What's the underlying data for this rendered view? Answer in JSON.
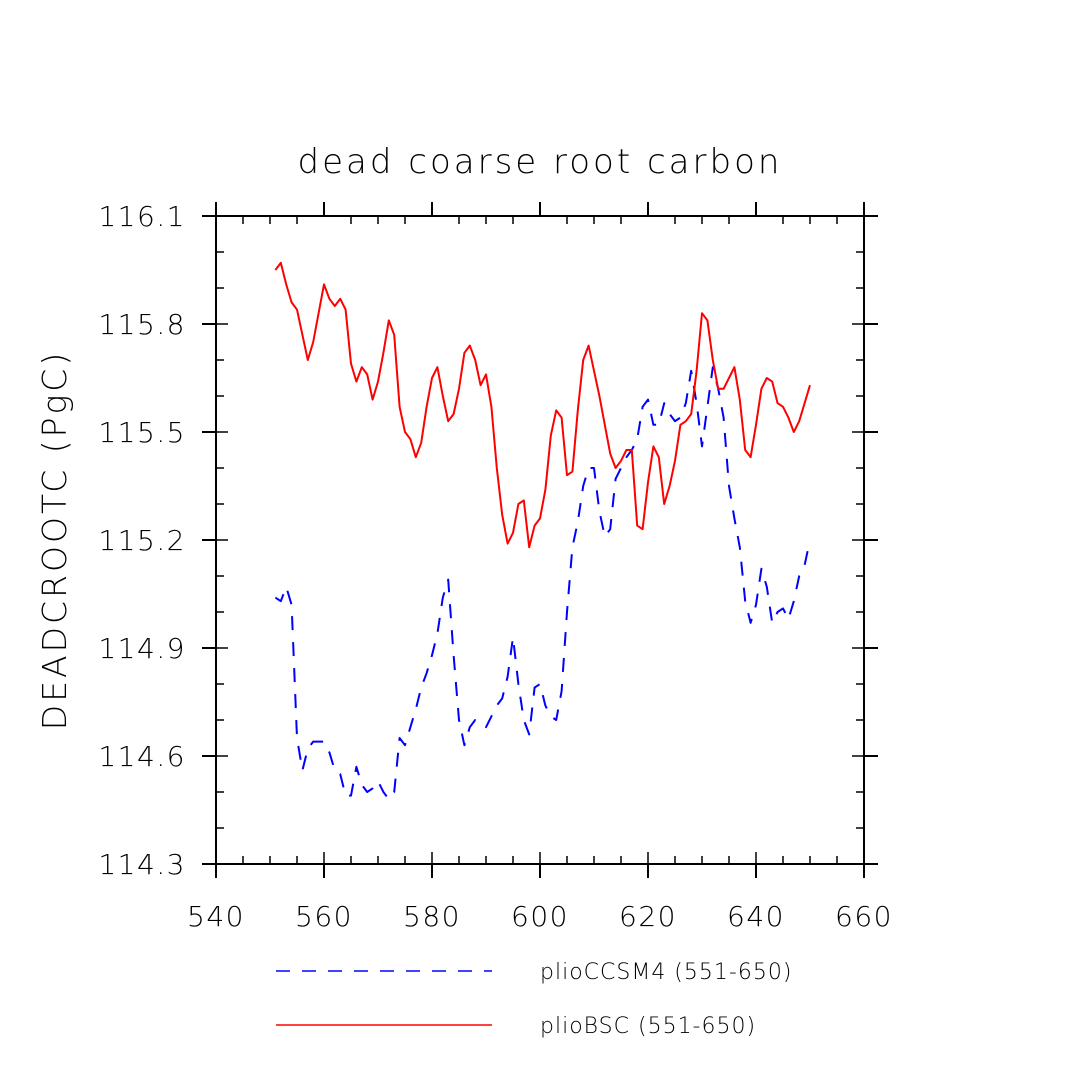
{
  "chart_data": {
    "type": "line",
    "title": "dead coarse root carbon",
    "xlabel": "",
    "ylabel": "DEADCROOTC  (PgC)",
    "xlim": [
      540,
      660
    ],
    "ylim": [
      114.3,
      116.1
    ],
    "xticks": [
      540,
      560,
      580,
      600,
      620,
      640,
      660
    ],
    "yticks": [
      114.3,
      114.6,
      114.9,
      115.2,
      115.5,
      115.8,
      116.1
    ],
    "ytick_labels": [
      "114.3",
      "114.6",
      "114.9",
      "115.2",
      "115.5",
      "115.8",
      "116.1"
    ],
    "grid": false,
    "legend_position": "bottom",
    "series": [
      {
        "name": "plioCCSM4 (551-650)",
        "color": "#0000ff",
        "style": "dashed",
        "x": [
          551,
          552,
          553,
          554,
          555,
          556,
          557,
          558,
          559,
          560,
          561,
          562,
          563,
          564,
          565,
          566,
          567,
          568,
          569,
          570,
          571,
          572,
          573,
          574,
          575,
          576,
          577,
          578,
          579,
          580,
          581,
          582,
          583,
          584,
          585,
          586,
          587,
          588,
          589,
          590,
          591,
          592,
          593,
          594,
          595,
          596,
          597,
          598,
          599,
          600,
          601,
          602,
          603,
          604,
          605,
          606,
          607,
          608,
          609,
          610,
          611,
          612,
          613,
          614,
          615,
          616,
          617,
          618,
          619,
          620,
          621,
          622,
          623,
          624,
          625,
          626,
          627,
          628,
          629,
          630,
          631,
          632,
          633,
          634,
          635,
          636,
          637,
          638,
          639,
          640,
          641,
          642,
          643,
          644,
          645,
          646,
          647,
          648,
          649,
          650
        ],
        "y": [
          115.04,
          115.03,
          115.07,
          115.02,
          114.65,
          114.56,
          114.62,
          114.64,
          114.64,
          114.64,
          114.61,
          114.56,
          114.55,
          114.49,
          114.49,
          114.57,
          114.52,
          114.5,
          114.51,
          114.53,
          114.5,
          114.48,
          114.5,
          114.65,
          114.63,
          114.68,
          114.73,
          114.79,
          114.83,
          114.88,
          114.94,
          115.04,
          115.09,
          114.88,
          114.7,
          114.63,
          114.68,
          114.7,
          114.69,
          114.68,
          114.71,
          114.74,
          114.76,
          114.82,
          114.93,
          114.8,
          114.7,
          114.66,
          114.79,
          114.8,
          114.74,
          114.71,
          114.7,
          114.78,
          115.0,
          115.18,
          115.25,
          115.35,
          115.4,
          115.4,
          115.28,
          115.21,
          115.23,
          115.37,
          115.4,
          115.43,
          115.45,
          115.48,
          115.57,
          115.59,
          115.52,
          115.52,
          115.58,
          115.55,
          115.53,
          115.54,
          115.58,
          115.67,
          115.58,
          115.46,
          115.57,
          115.68,
          115.62,
          115.54,
          115.35,
          115.26,
          115.18,
          115.03,
          114.97,
          115.02,
          115.12,
          115.07,
          114.97,
          115.0,
          115.01,
          114.98,
          115.03,
          115.1,
          115.13,
          115.2
        ]
      },
      {
        "name": "plioBSC (551-650)",
        "color": "#ff0000",
        "style": "solid",
        "x": [
          551,
          552,
          553,
          554,
          555,
          556,
          557,
          558,
          559,
          560,
          561,
          562,
          563,
          564,
          565,
          566,
          567,
          568,
          569,
          570,
          571,
          572,
          573,
          574,
          575,
          576,
          577,
          578,
          579,
          580,
          581,
          582,
          583,
          584,
          585,
          586,
          587,
          588,
          589,
          590,
          591,
          592,
          593,
          594,
          595,
          596,
          597,
          598,
          599,
          600,
          601,
          602,
          603,
          604,
          605,
          606,
          607,
          608,
          609,
          610,
          611,
          612,
          613,
          614,
          615,
          616,
          617,
          618,
          619,
          620,
          621,
          622,
          623,
          624,
          625,
          626,
          627,
          628,
          629,
          630,
          631,
          632,
          633,
          634,
          635,
          636,
          637,
          638,
          639,
          640,
          641,
          642,
          643,
          644,
          645,
          646,
          647,
          648,
          649,
          650
        ],
        "y": [
          115.95,
          115.97,
          115.91,
          115.86,
          115.84,
          115.77,
          115.7,
          115.75,
          115.83,
          115.91,
          115.87,
          115.85,
          115.87,
          115.84,
          115.69,
          115.64,
          115.68,
          115.66,
          115.59,
          115.64,
          115.72,
          115.81,
          115.77,
          115.57,
          115.5,
          115.48,
          115.43,
          115.47,
          115.57,
          115.65,
          115.68,
          115.6,
          115.53,
          115.55,
          115.62,
          115.72,
          115.74,
          115.7,
          115.63,
          115.66,
          115.57,
          115.4,
          115.27,
          115.19,
          115.22,
          115.3,
          115.31,
          115.18,
          115.24,
          115.26,
          115.34,
          115.49,
          115.56,
          115.54,
          115.38,
          115.39,
          115.56,
          115.7,
          115.74,
          115.67,
          115.6,
          115.52,
          115.44,
          115.4,
          115.42,
          115.45,
          115.45,
          115.24,
          115.23,
          115.36,
          115.46,
          115.43,
          115.3,
          115.35,
          115.42,
          115.52,
          115.53,
          115.55,
          115.67,
          115.83,
          115.81,
          115.7,
          115.62,
          115.62,
          115.65,
          115.68,
          115.59,
          115.45,
          115.43,
          115.52,
          115.62,
          115.65,
          115.64,
          115.58,
          115.57,
          115.54,
          115.5,
          115.53,
          115.58,
          115.63
        ]
      }
    ]
  }
}
